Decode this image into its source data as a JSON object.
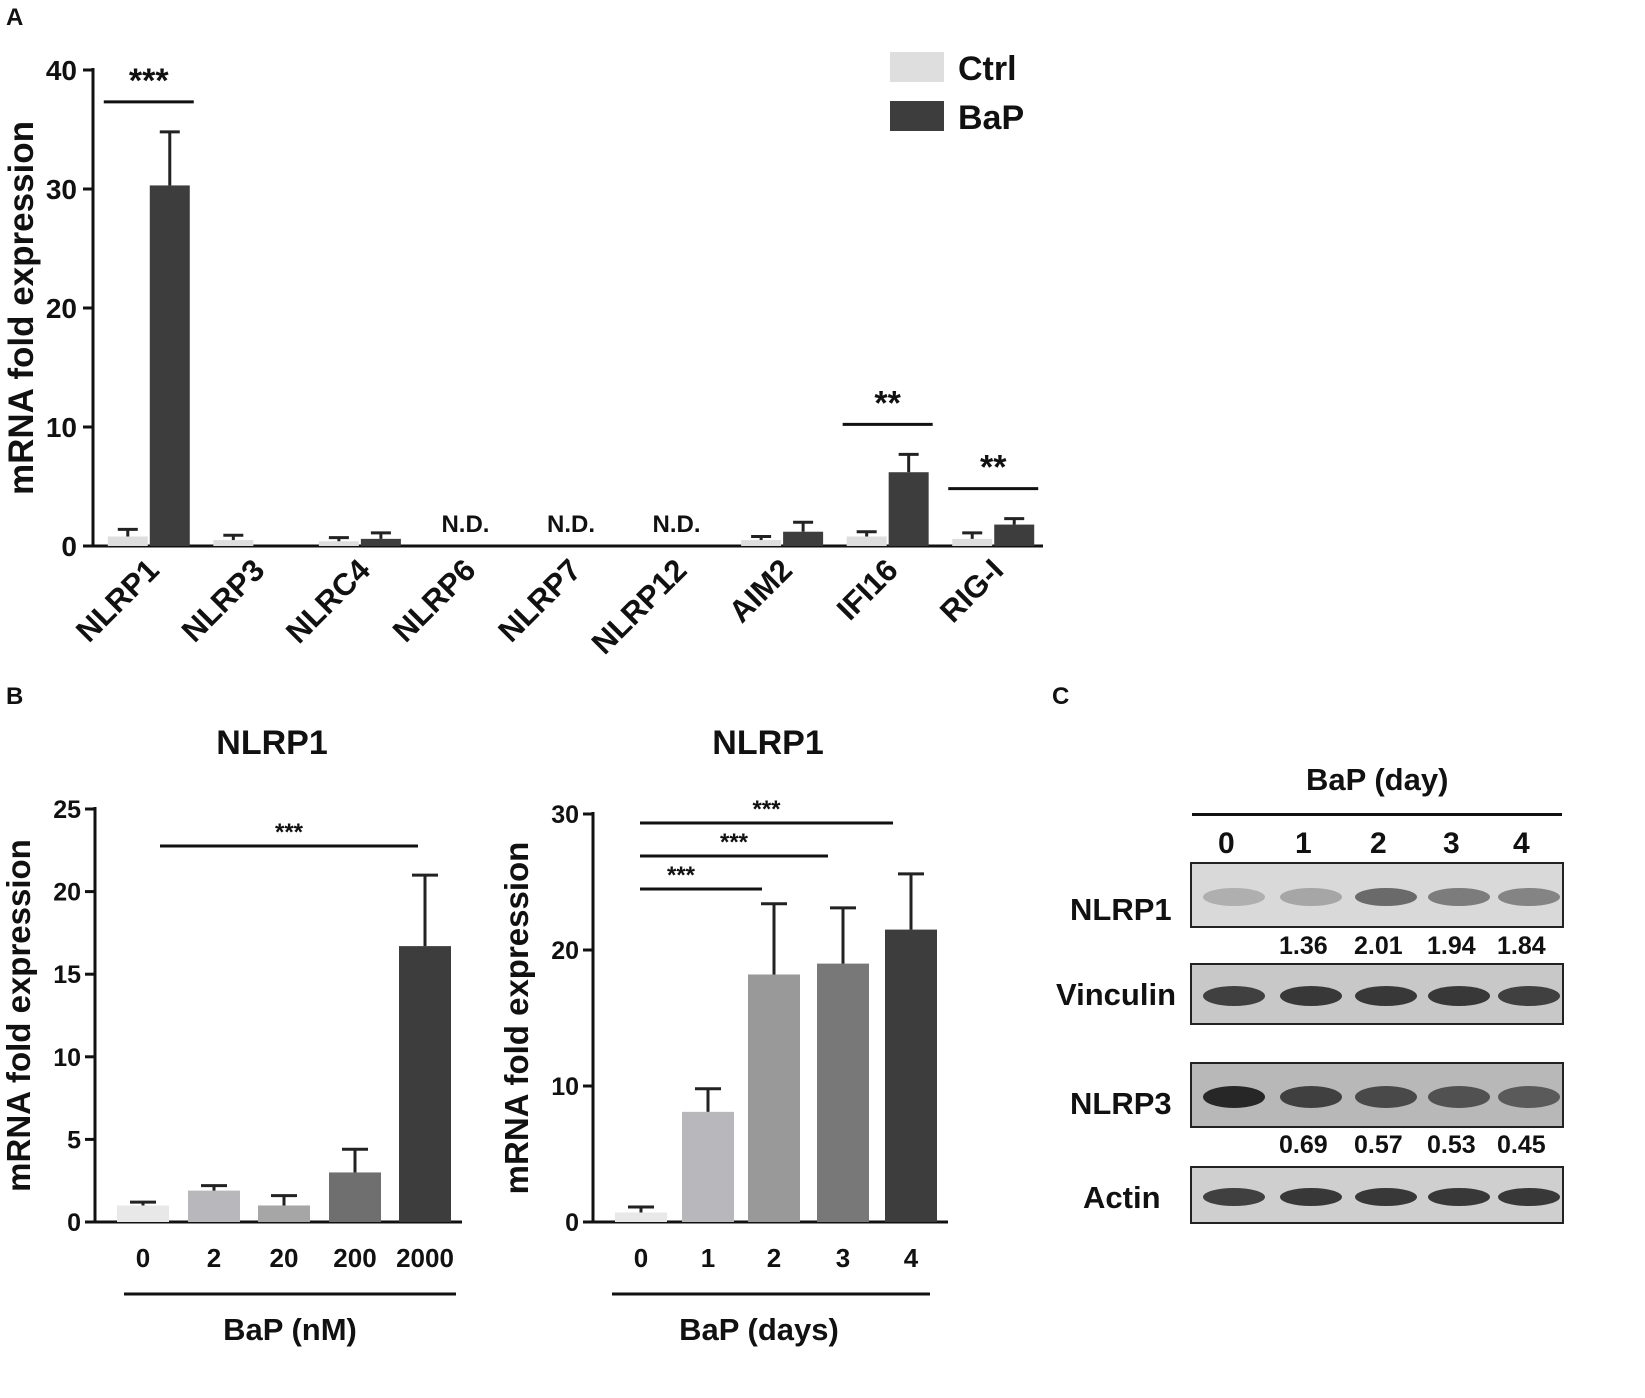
{
  "panels": {
    "a": "A",
    "b": "B",
    "c": "C"
  },
  "chart_data": [
    {
      "id": "A",
      "type": "bar",
      "categories": [
        "NLRP1",
        "NLRP3",
        "NLRC4",
        "NLRP6",
        "NLRP7",
        "NLRP12",
        "AIM2",
        "IFI16",
        "RIG-I"
      ],
      "series": [
        {
          "name": "Ctrl",
          "color": "#dedede",
          "values": [
            0.8,
            0.5,
            0.4,
            null,
            null,
            null,
            0.5,
            0.8,
            0.6
          ],
          "errors": [
            0.6,
            0.4,
            0.3,
            null,
            null,
            null,
            0.3,
            0.4,
            0.5
          ]
        },
        {
          "name": "BaP",
          "color": "#3d3d3d",
          "values": [
            30.3,
            null,
            0.6,
            null,
            null,
            null,
            1.2,
            6.2,
            1.8
          ],
          "errors": [
            4.5,
            null,
            0.5,
            null,
            null,
            null,
            0.8,
            1.5,
            0.5
          ]
        }
      ],
      "nd_label": "N.D.",
      "nd_categories": [
        3,
        4,
        5
      ],
      "ylabel": "mRNA fold expression",
      "ylim": [
        0,
        40
      ],
      "yticks": [
        "0",
        "10",
        "20",
        "30",
        "40"
      ],
      "significance": [
        {
          "category": 0,
          "label": "***"
        },
        {
          "category": 7,
          "label": "**"
        },
        {
          "category": 8,
          "label": "**"
        }
      ],
      "legend": "top-right"
    },
    {
      "id": "B1",
      "type": "bar",
      "title": "NLRP1",
      "categories": [
        "0",
        "2",
        "20",
        "200",
        "2000"
      ],
      "values": [
        1.0,
        1.9,
        1.0,
        3.0,
        16.7
      ],
      "errors": [
        0.2,
        0.3,
        0.6,
        1.4,
        4.3
      ],
      "colors": [
        "#e8e8e8",
        "#b8b8bc",
        "#a6a6a6",
        "#6f6f6f",
        "#3d3d3d"
      ],
      "xlabel": "BaP (nM)",
      "ylabel": "mRNA fold expression",
      "ylim": [
        0,
        25
      ],
      "yticks": [
        "0",
        "5",
        "10",
        "15",
        "20",
        "25"
      ],
      "significance": [
        {
          "from": 0,
          "to": 4,
          "label": "***"
        }
      ]
    },
    {
      "id": "B2",
      "type": "bar",
      "title": "NLRP1",
      "categories": [
        "0",
        "1",
        "2",
        "3",
        "4"
      ],
      "values": [
        0.7,
        8.1,
        18.2,
        19.0,
        21.5
      ],
      "errors": [
        0.4,
        1.7,
        5.2,
        4.1,
        4.1
      ],
      "colors": [
        "#e8e8e8",
        "#b8b8bc",
        "#999999",
        "#787878",
        "#3d3d3d"
      ],
      "xlabel": "BaP (days)",
      "ylabel": "mRNA fold expression",
      "ylim": [
        0,
        30
      ],
      "yticks": [
        "0",
        "10",
        "20",
        "30"
      ],
      "significance": [
        {
          "from": 0,
          "to": 4,
          "label": "***"
        },
        {
          "from": 0,
          "to": 3,
          "label": "***"
        },
        {
          "from": 0,
          "to": 2,
          "label": "***"
        }
      ]
    }
  ],
  "blot": {
    "header": "BaP (day)",
    "lanes": [
      "0",
      "1",
      "2",
      "3",
      "4"
    ],
    "rows": [
      {
        "label": "NLRP1",
        "intensity": [
          0.15,
          0.2,
          0.55,
          0.45,
          0.4
        ],
        "quant": [
          "",
          "1.36",
          "2.01",
          "1.94",
          "1.84"
        ]
      },
      {
        "label": "Vinculin",
        "intensity": [
          0.8,
          0.85,
          0.85,
          0.85,
          0.8
        ],
        "quant": []
      },
      {
        "label": "NLRP3",
        "intensity": [
          0.95,
          0.8,
          0.75,
          0.7,
          0.65
        ],
        "quant": [
          "",
          "0.69",
          "0.57",
          "0.53",
          "0.45"
        ]
      },
      {
        "label": "Actin",
        "intensity": [
          0.8,
          0.85,
          0.85,
          0.85,
          0.85
        ],
        "quant": []
      }
    ]
  }
}
